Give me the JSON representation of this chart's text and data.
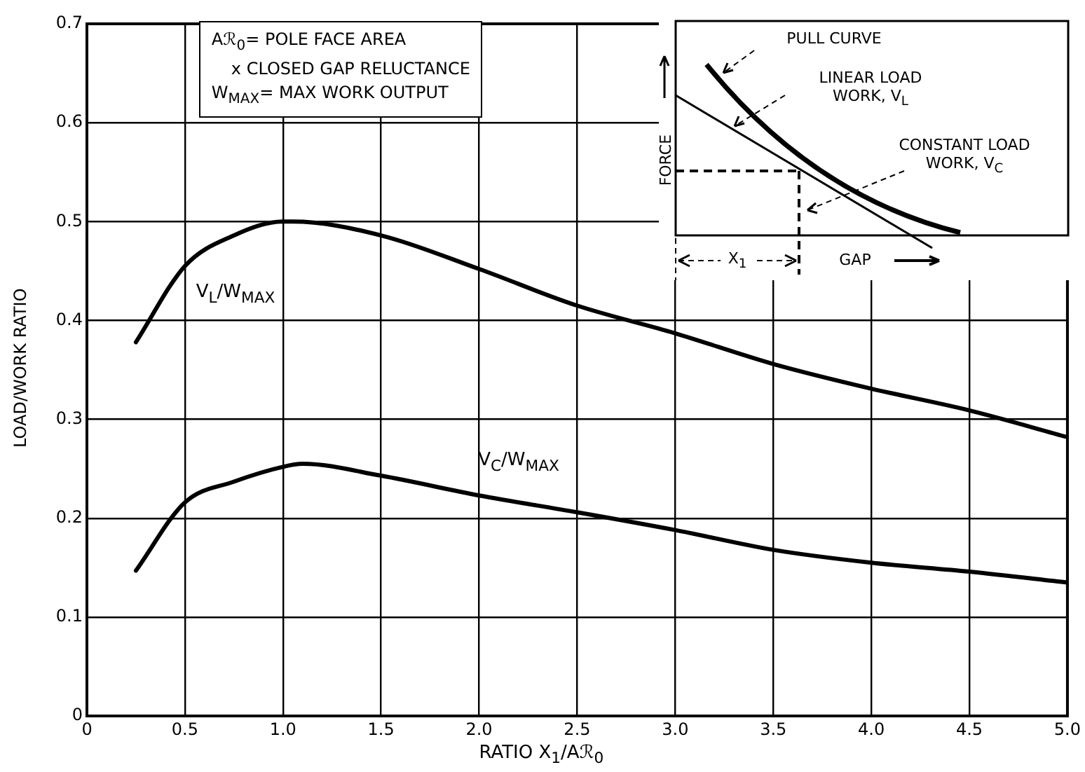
{
  "chart_data": {
    "type": "line",
    "xlabel": "RATIO X$_{1}$/Aℛ$_{0}$",
    "ylabel": "LOAD/WORK RATIO",
    "xlim": [
      0,
      5
    ],
    "ylim": [
      0,
      0.7
    ],
    "xticks": [
      0,
      {
        "value": 0.5,
        "label": "0.5"
      },
      {
        "value": 1,
        "label": "1.0"
      },
      {
        "value": 1.5,
        "label": "1.5"
      },
      {
        "value": 2,
        "label": "2.0"
      },
      {
        "value": 2.5,
        "label": "2.5"
      },
      {
        "value": 3,
        "label": "3.0"
      },
      {
        "value": 3.5,
        "label": "3.5"
      },
      {
        "value": 4,
        "label": "4.0"
      },
      {
        "value": 4.5,
        "label": "4.5"
      },
      {
        "value": 5,
        "label": "5.0"
      }
    ],
    "yticks": [
      0,
      0.1,
      0.2,
      0.3,
      0.4,
      0.5,
      0.6,
      0.7
    ],
    "grid": true,
    "legend": false,
    "marker": "none",
    "line_style": "solid",
    "series": [
      {
        "color": "#000000",
        "x": [
          0.25,
          0.5,
          0.75,
          1.0,
          1.05,
          1.5,
          2.0,
          2.5,
          3.0,
          3.5,
          4.0,
          4.5,
          5.0
        ],
        "values": [
          0.378,
          0.455,
          0.486,
          0.5,
          0.5,
          0.486,
          0.452,
          0.415,
          0.387,
          0.356,
          0.331,
          0.309,
          0.282
        ]
      },
      {
        "color": "#000000",
        "x": [
          0.25,
          0.5,
          0.75,
          1.0,
          1.1,
          1.5,
          2.0,
          2.5,
          3.0,
          3.5,
          4.0,
          4.5,
          5.0
        ],
        "values": [
          0.147,
          0.216,
          0.237,
          0.252,
          0.255,
          0.243,
          0.223,
          0.206,
          0.188,
          0.168,
          0.155,
          0.146,
          0.135
        ]
      }
    ],
    "annotations": [
      "Aℛ$_{0}$= POLE FACE AREA",
      "x CLOSED GAP RELUCTANCE",
      "W$_{MAX}$= MAX WORK OUTPUT",
      "V$_{L}$/W$_{MAX}$",
      "V$_{C}$/W$_{MAX}$",
      "PULL CURVE",
      "LINEAR LOAD WORK, V$_{L}$",
      "CONSTANT LOAD WORK, V$_{C}$",
      "FORCE",
      "X$_{1}$",
      "GAP"
    ]
  }
}
